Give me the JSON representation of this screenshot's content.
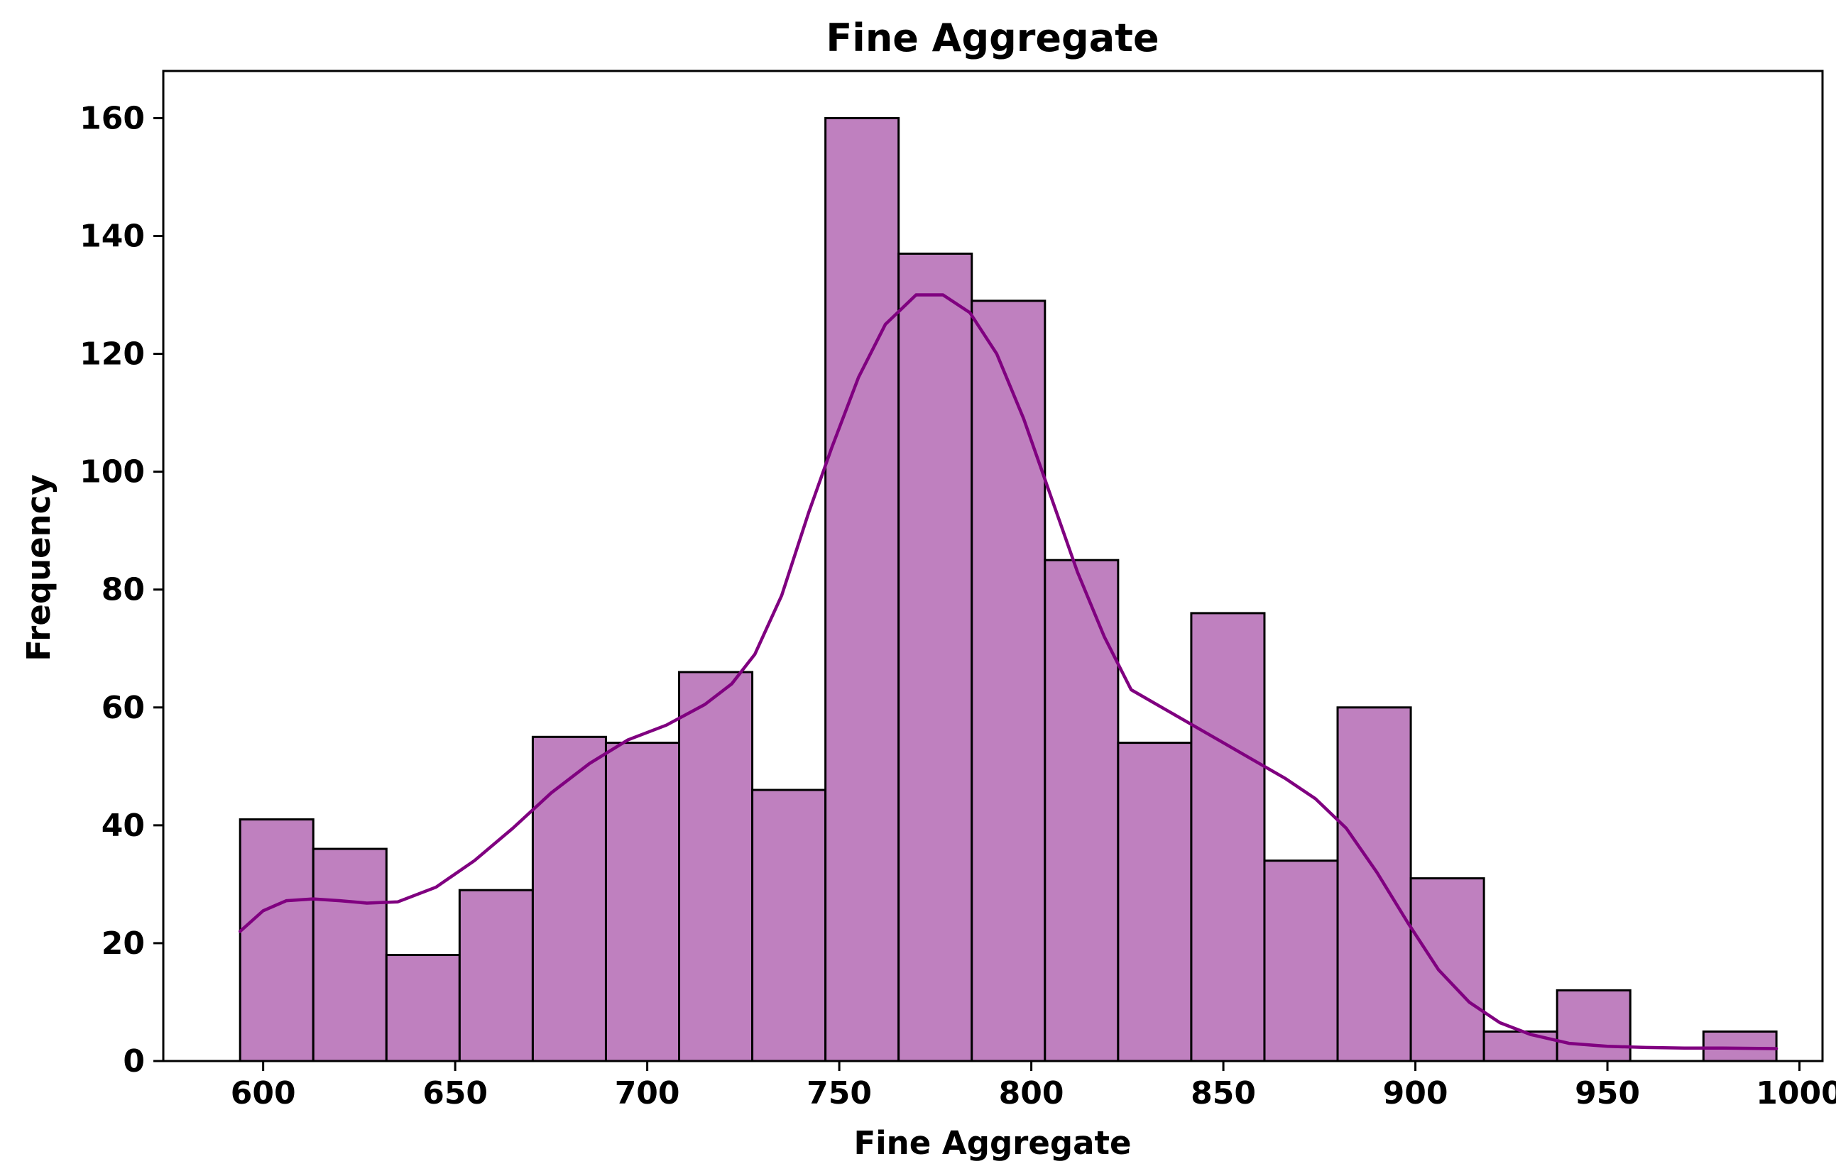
{
  "chart_data": {
    "type": "bar",
    "title": "Fine Aggregate",
    "xlabel": "Fine Aggregate",
    "ylabel": "Frequency",
    "xlim": [
      574,
      1006
    ],
    "ylim": [
      0,
      168
    ],
    "xticks": [
      600,
      650,
      700,
      750,
      800,
      850,
      900,
      950,
      1000
    ],
    "yticks": [
      0,
      20,
      40,
      60,
      80,
      100,
      120,
      140,
      160
    ],
    "bin_edges": [
      594.0,
      613.05,
      632.1,
      651.15,
      670.2,
      689.25,
      708.3,
      727.35,
      746.4,
      765.45,
      784.5,
      803.55,
      822.6,
      841.65,
      860.7,
      879.75,
      898.8,
      917.85,
      936.9,
      955.95,
      975.0,
      994.0
    ],
    "values": [
      41,
      36,
      18,
      29,
      55,
      54,
      66,
      46,
      160,
      137,
      129,
      85,
      54,
      76,
      34,
      60,
      31,
      5,
      12,
      0,
      5
    ],
    "bar_fill": "#bf80bf",
    "bar_edge": "#000000",
    "kde": {
      "color": "#800080",
      "x": [
        594,
        600,
        606,
        613,
        620,
        627,
        635,
        645,
        655,
        665,
        675,
        685,
        695,
        705,
        715,
        722,
        728,
        735,
        742,
        748,
        755,
        762,
        770,
        777,
        784,
        791,
        798,
        805,
        812,
        819,
        826,
        834,
        842,
        850,
        858,
        866,
        874,
        882,
        890,
        898,
        906,
        914,
        922,
        930,
        940,
        950,
        960,
        970,
        980,
        994
      ],
      "y": [
        22,
        25.5,
        27.2,
        27.5,
        27.2,
        26.8,
        27,
        29.5,
        34,
        39.5,
        45.5,
        50.5,
        54.5,
        57,
        60.5,
        64,
        69,
        79,
        93,
        104,
        116,
        125,
        130,
        130,
        127,
        120,
        109,
        96,
        83,
        72,
        63,
        60,
        57,
        54,
        51,
        48,
        44.5,
        39.5,
        32,
        23.5,
        15.5,
        10,
        6.5,
        4.5,
        3,
        2.5,
        2.3,
        2.2,
        2.2,
        2.1
      ]
    }
  }
}
